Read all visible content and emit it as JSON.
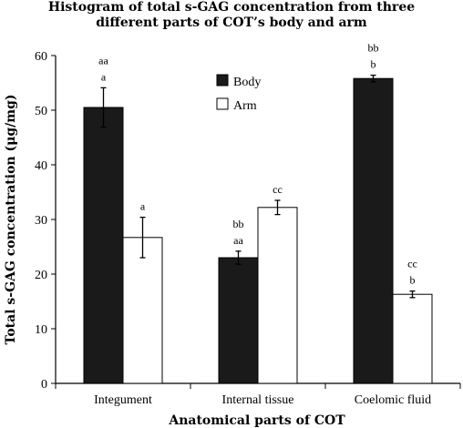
{
  "chart_data": {
    "type": "bar",
    "title_lines": [
      "Histogram of total s-GAG concentration from three",
      "different parts of COT’s body and arm"
    ],
    "xlabel": "Anatomical parts of COT",
    "ylabel": "Total s-GAG concentration (μg/mg)",
    "ylim": [
      0,
      60
    ],
    "yticks": [
      0,
      10,
      20,
      30,
      40,
      50,
      60
    ],
    "categories": [
      "Integument",
      "Internal tissue",
      "Coelomic fluid"
    ],
    "legend_position": "top-center",
    "grid": false,
    "series": [
      {
        "name": "Body",
        "color": "#1a1a1a",
        "values": [
          50.5,
          23.0,
          55.8
        ],
        "errors": [
          3.6,
          1.2,
          0.6
        ],
        "annotations": [
          [
            "aa",
            "a"
          ],
          [
            "bb",
            "aa"
          ],
          [
            "bb",
            "b"
          ]
        ]
      },
      {
        "name": "Arm",
        "color": "#ffffff",
        "values": [
          26.7,
          32.2,
          16.3
        ],
        "errors": [
          3.7,
          1.3,
          0.6
        ],
        "annotations": [
          [
            "a"
          ],
          [
            "cc"
          ],
          [
            "cc",
            "b"
          ]
        ]
      }
    ]
  }
}
